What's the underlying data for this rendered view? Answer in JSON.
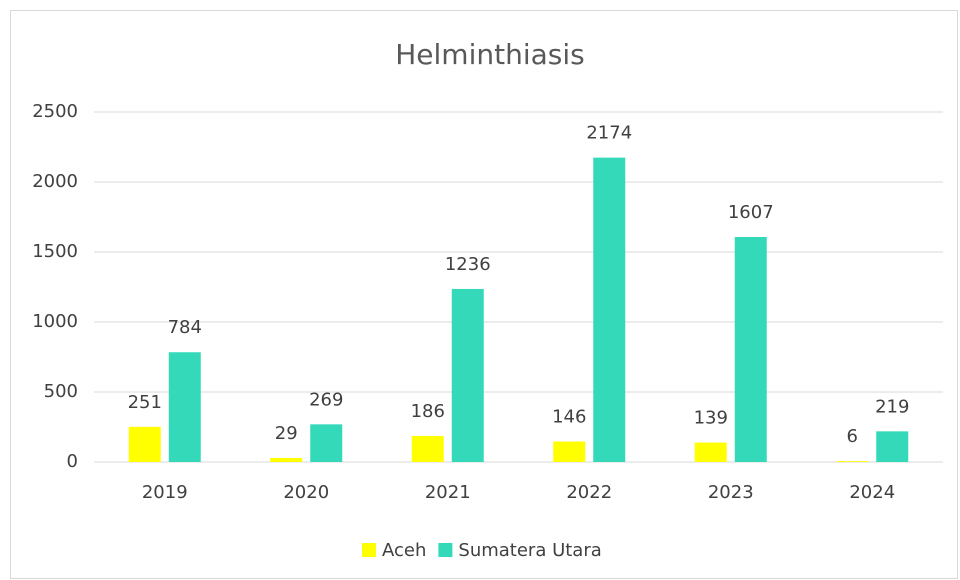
{
  "chart_data": {
    "type": "bar",
    "title": "Helminthiasis",
    "categories": [
      "2019",
      "2020",
      "2021",
      "2022",
      "2023",
      "2024"
    ],
    "series": [
      {
        "name": "Aceh",
        "color": "#ffff00",
        "values": [
          251,
          29,
          186,
          146,
          139,
          6
        ]
      },
      {
        "name": "Sumatera Utara",
        "color": "#33d9b9",
        "values": [
          784,
          269,
          1236,
          2174,
          1607,
          219
        ]
      }
    ],
    "ylim": [
      0,
      2500
    ],
    "yticks": [
      0,
      500,
      1000,
      1500,
      2000,
      2500
    ],
    "grid": true,
    "legend": "bottom"
  }
}
